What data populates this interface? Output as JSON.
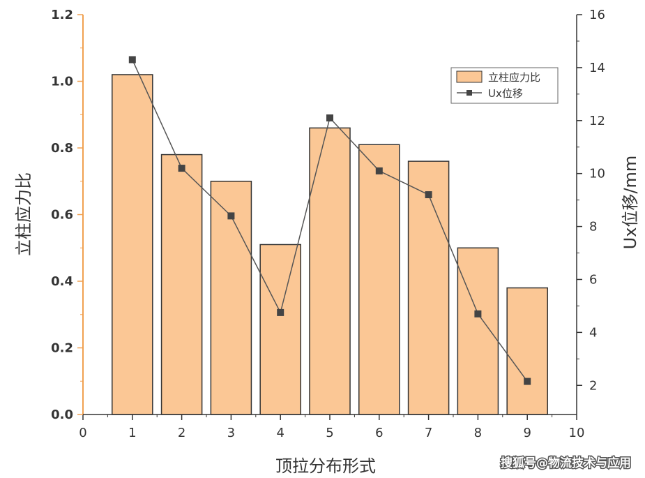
{
  "chart_data": {
    "type": "bar",
    "x": [
      1,
      2,
      3,
      4,
      5,
      6,
      7,
      8,
      9
    ],
    "xlim": [
      0,
      10
    ],
    "xticks": [
      "0",
      "1",
      "2",
      "3",
      "4",
      "5",
      "6",
      "7",
      "8",
      "9",
      "10"
    ],
    "xlabel": "顶拉分布形式",
    "ylabel_left": "立柱应力比",
    "ylim_left": [
      0,
      1.2
    ],
    "yticks_left": [
      "0.0",
      "0.2",
      "0.4",
      "0.6",
      "0.8",
      "1.0",
      "1.2"
    ],
    "ylabel_right": "Ux位移/mm",
    "ylim_right": [
      0.9,
      16
    ],
    "yticks_right": [
      "2",
      "4",
      "6",
      "8",
      "10",
      "12",
      "14",
      "16"
    ],
    "series": [
      {
        "name": "立柱应力比",
        "type": "bar",
        "axis": "left",
        "values": [
          1.02,
          0.78,
          0.7,
          0.51,
          0.86,
          0.81,
          0.76,
          0.5,
          0.38
        ]
      },
      {
        "name": "Ux位移",
        "type": "line",
        "axis": "right",
        "values": [
          14.3,
          10.2,
          8.4,
          4.75,
          12.1,
          10.1,
          9.2,
          4.7,
          2.15
        ]
      }
    ],
    "legend": {
      "placement": "top-right",
      "entries": [
        "立柱应力比",
        "Ux位移"
      ]
    },
    "colors": {
      "bar_fill": "#fbc795",
      "bar_edge": "#333333",
      "line": "#555555",
      "marker": "#444444",
      "left_axis": "#f0a050"
    },
    "grid": false
  },
  "watermark": "搜狐号@物流技术与应用"
}
